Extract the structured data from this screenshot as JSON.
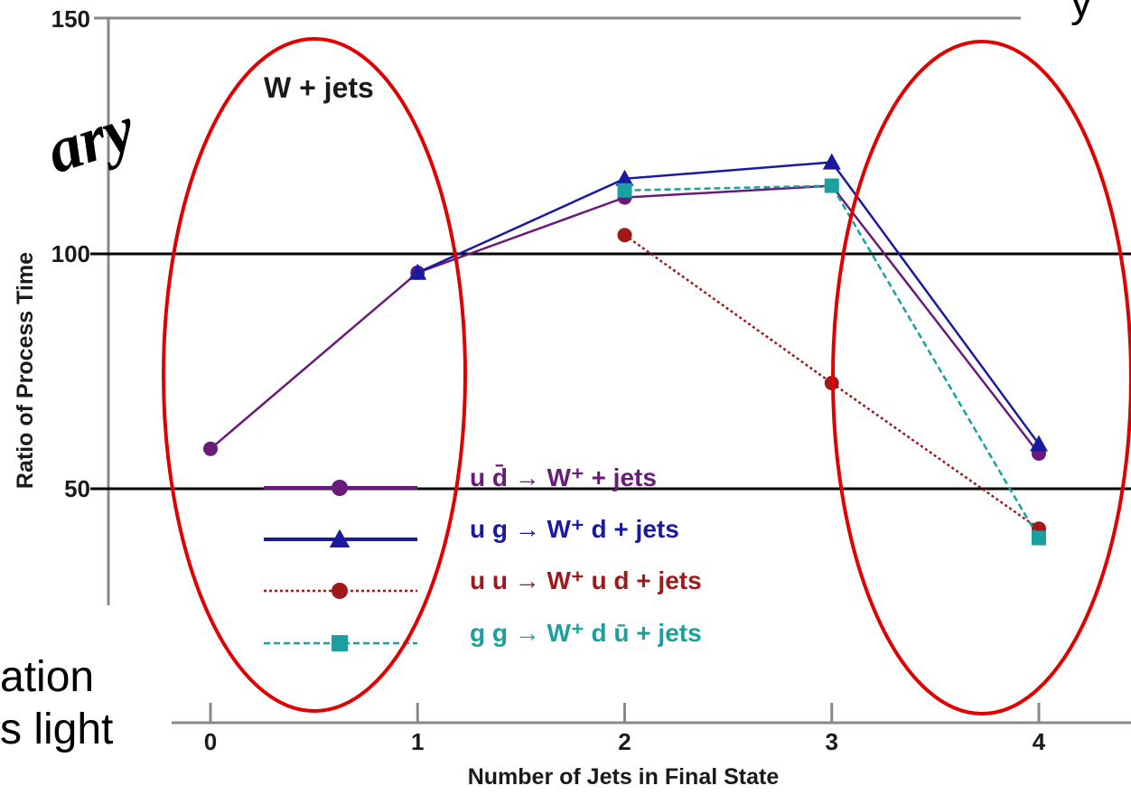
{
  "chart_data": {
    "type": "line",
    "title": "W + jets",
    "xlabel": "Number of Jets in Final State",
    "ylabel": "Ratio of Process Time",
    "x_ticks": [
      "0",
      "1",
      "2",
      "3",
      "4"
    ],
    "y_ticks": [
      "50",
      "100",
      "150"
    ],
    "xlim": [
      0,
      4
    ],
    "ylim": [
      25,
      150
    ],
    "grid": false,
    "legend_position": "bottom-center",
    "series": [
      {
        "name": "u d̄ → W⁺ + jets",
        "color": "#6a1a7a",
        "marker": "circle",
        "line": "solid",
        "x": [
          0,
          1,
          2,
          3,
          4
        ],
        "y": [
          58.5,
          96,
          112,
          114.5,
          57.5
        ]
      },
      {
        "name": "u g → W⁺ d + jets",
        "color": "#1a1aa0",
        "marker": "triangle",
        "line": "solid",
        "x": [
          1,
          2,
          3,
          4
        ],
        "y": [
          96,
          116,
          119.5,
          59.5
        ]
      },
      {
        "name": "u u → W⁺ u d + jets",
        "color": "#a01818",
        "marker": "circle",
        "line": "dotted",
        "x": [
          2,
          3,
          4
        ],
        "y": [
          104,
          72.5,
          41.5
        ]
      },
      {
        "name": "g g → W⁺ d ū + jets",
        "color": "#1aa0a0",
        "marker": "square",
        "line": "dashed",
        "x": [
          2,
          3,
          4
        ],
        "y": [
          113.5,
          114.5,
          39.5
        ]
      }
    ]
  },
  "overlay": {
    "partial_word_top": "ary",
    "partial_text_line1": "ation",
    "partial_text_line2": "s light",
    "partial_top_right": "y",
    "ellipse_color": "#e00000"
  }
}
